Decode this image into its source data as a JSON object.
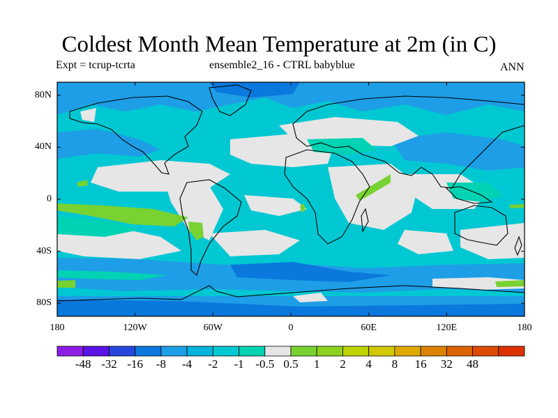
{
  "title": "Coldest Month Mean Temperature at 2m (in C)",
  "subtitle_left": "Expt = tcrup-tcrta",
  "subtitle_center": "ensemble2_16 - CTRL babyblue",
  "subtitle_right": "ANN",
  "map": {
    "projection": "cylindrical-equidistant",
    "lon_range": [
      -180,
      180
    ],
    "lat_range": [
      -90,
      90
    ],
    "lat_ticks": [
      {
        "value": 80,
        "label": "80N"
      },
      {
        "value": 40,
        "label": "40N"
      },
      {
        "value": 0,
        "label": "0"
      },
      {
        "value": -40,
        "label": "40S"
      },
      {
        "value": -80,
        "label": "80S"
      }
    ],
    "lon_ticks": [
      {
        "value": -180,
        "label": "180"
      },
      {
        "value": -120,
        "label": "120W"
      },
      {
        "value": -60,
        "label": "60W"
      },
      {
        "value": 0,
        "label": "0"
      },
      {
        "value": 60,
        "label": "60E"
      },
      {
        "value": 120,
        "label": "120E"
      },
      {
        "value": 180,
        "label": "180"
      }
    ],
    "field_colors": {
      "background": "#00c8d2",
      "neutral": "#e6e6e6",
      "cool": "#1e9ee6",
      "cold": "#0a78dc",
      "mild": "#00d2b4",
      "warm": "#78d232"
    }
  },
  "colorbar": {
    "colors": [
      "#8c1ee6",
      "#5a14e6",
      "#2846dc",
      "#0a78dc",
      "#1e9ee6",
      "#00b4dc",
      "#00c8d2",
      "#00d2b4",
      "#e6e6e6",
      "#78d232",
      "#8cd21e",
      "#bed200",
      "#d2c800",
      "#dcaa00",
      "#dc8200",
      "#dc6400",
      "#dc4b00",
      "#dc3200"
    ],
    "labels": [
      "-48",
      "-32",
      "-16",
      "-8",
      "-4",
      "-2",
      "-1",
      "-0.5",
      "0.5",
      "1",
      "2",
      "4",
      "8",
      "16",
      "32",
      "48"
    ]
  }
}
